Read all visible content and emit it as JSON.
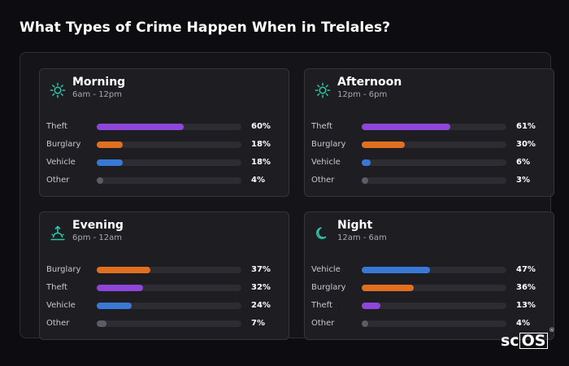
{
  "page": {
    "title": "What Types of Crime Happen When in Trelales?"
  },
  "colors": {
    "Theft": "#8e46d8",
    "Burglary": "#e07020",
    "Vehicle": "#3a78d6",
    "Other": "#5c5c66",
    "icon": "#2ec4a6"
  },
  "cards": [
    {
      "title": "Morning",
      "subtitle": "6am - 12pm",
      "icon": "sun-icon",
      "rows": [
        {
          "label": "Theft",
          "percent": 60,
          "value": "60%"
        },
        {
          "label": "Burglary",
          "percent": 18,
          "value": "18%"
        },
        {
          "label": "Vehicle",
          "percent": 18,
          "value": "18%"
        },
        {
          "label": "Other",
          "percent": 4,
          "value": "4%"
        }
      ]
    },
    {
      "title": "Afternoon",
      "subtitle": "12pm - 6pm",
      "icon": "sun-icon",
      "rows": [
        {
          "label": "Theft",
          "percent": 61,
          "value": "61%"
        },
        {
          "label": "Burglary",
          "percent": 30,
          "value": "30%"
        },
        {
          "label": "Vehicle",
          "percent": 6,
          "value": "6%"
        },
        {
          "label": "Other",
          "percent": 3,
          "value": "3%"
        }
      ]
    },
    {
      "title": "Evening",
      "subtitle": "6pm - 12am",
      "icon": "sunset-icon",
      "rows": [
        {
          "label": "Burglary",
          "percent": 37,
          "value": "37%"
        },
        {
          "label": "Theft",
          "percent": 32,
          "value": "32%"
        },
        {
          "label": "Vehicle",
          "percent": 24,
          "value": "24%"
        },
        {
          "label": "Other",
          "percent": 7,
          "value": "7%"
        }
      ]
    },
    {
      "title": "Night",
      "subtitle": "12am - 6am",
      "icon": "moon-icon",
      "rows": [
        {
          "label": "Vehicle",
          "percent": 47,
          "value": "47%"
        },
        {
          "label": "Burglary",
          "percent": 36,
          "value": "36%"
        },
        {
          "label": "Theft",
          "percent": 13,
          "value": "13%"
        },
        {
          "label": "Other",
          "percent": 4,
          "value": "4%"
        }
      ]
    }
  ],
  "brand": {
    "text_a": "sc",
    "text_b": "OS",
    "reg": "®"
  }
}
